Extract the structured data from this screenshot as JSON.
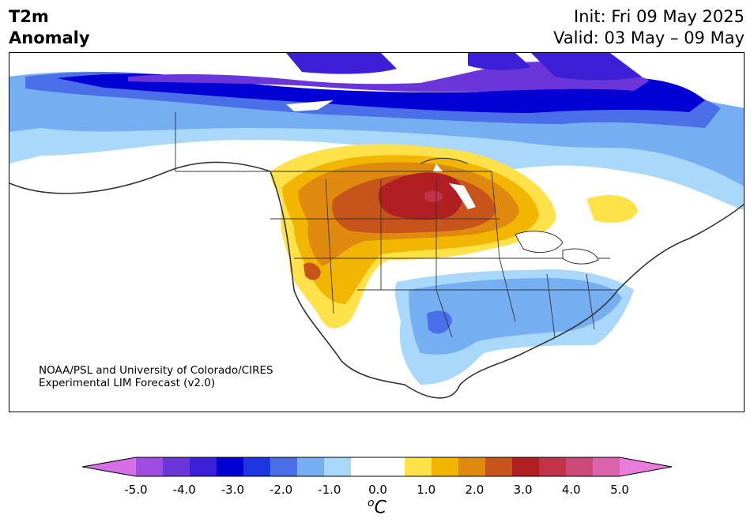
{
  "header": {
    "title_line1": "T2m",
    "title_line2": "Anomaly",
    "init": "Init: Fri 09 May 2025",
    "valid": "Valid: 03 May – 09 May"
  },
  "credit": {
    "line1": "NOAA/PSL and University of Colorado/CIRES",
    "line2": "Experimental LIM Forecast (v2.0)"
  },
  "colorbar": {
    "colors": [
      "#d66ee8",
      "#9e4de0",
      "#6a36d9",
      "#3c1fd6",
      "#0000d4",
      "#1d36e0",
      "#4a6fe8",
      "#76aef2",
      "#a9d8fa",
      "#ffffff",
      "#ffffff",
      "#ffe14a",
      "#f2b600",
      "#df8a0f",
      "#c7541a",
      "#b21f22",
      "#c2334a",
      "#cc4a78",
      "#dd62ac",
      "#e97bdc"
    ],
    "tick_labels": [
      "-5.0",
      "-4.0",
      "-3.0",
      "-2.0",
      "-1.0",
      "0.0",
      "1.0",
      "2.0",
      "3.0",
      "4.0",
      "5.0"
    ],
    "unit": "C",
    "unit_prefix": "o"
  }
}
